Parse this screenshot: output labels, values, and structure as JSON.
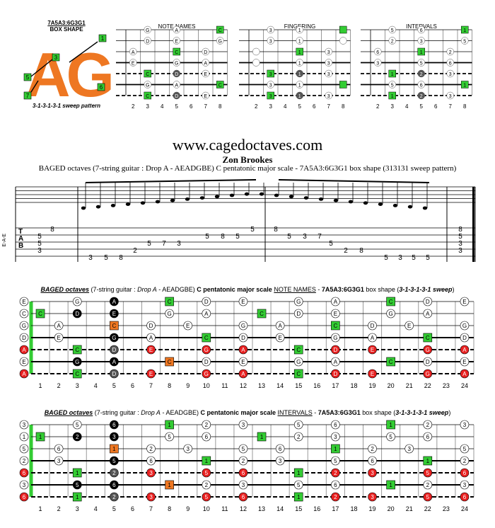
{
  "header": {
    "box_title": "7A5A3:6G3G1",
    "box_subtitle": "BOX SHAPE",
    "logo_letters": "AG",
    "logo_finger_numbers": [
      "1",
      "3",
      "5",
      "7",
      "6"
    ],
    "sweep_caption": "3-1-3-1-3-1 sweep pattern",
    "mini_titles": [
      "NOTE NAMES",
      "FINGERING",
      "INTERVALS"
    ],
    "mini_frets": [
      "2",
      "3",
      "4",
      "5",
      "6",
      "7",
      "8"
    ]
  },
  "site": "www.cagedoctaves.com",
  "author": "Zon Brookes",
  "subtitle": "BAGED octaves (7-string guitar : Drop A - AEADGBE) C pentatonic major scale - 7A5A3:6G3G1 box shape (313131 sweep pattern)",
  "staff": {
    "string_label": "E-A-E",
    "tab_letters": [
      "T",
      "A",
      "B"
    ],
    "tab_numbers": [
      "8",
      "5",
      "5",
      "3",
      "3",
      "5",
      "8",
      "2",
      "5",
      "7",
      "3",
      "5",
      "8",
      "5",
      "5",
      "8",
      "5",
      "3",
      "7",
      "5",
      "2",
      "8",
      "5",
      "3",
      "5",
      "5",
      "8",
      "5",
      "3",
      "3"
    ]
  },
  "section1": {
    "title_italic": "BAGED octaves",
    "title_rest1": " (7-string guitar : ",
    "title_drop": "Drop A",
    "title_rest2": " - AEADGBE) ",
    "title_scale": "C pentatonic major scale",
    "title_type": "NOTE NAMES",
    "title_dash": " - ",
    "title_box": "7A5A3:6G3G1",
    "title_box2": " box shape (",
    "title_pattern": "3-1-3-1-3-1 sweep",
    "title_end": ")"
  },
  "section2": {
    "title_italic": "BAGED octaves",
    "title_rest1": " (7-string guitar : ",
    "title_drop": "Drop A",
    "title_rest2": " - AEADGBE) ",
    "title_scale": "C pentatonic major scale",
    "title_type": "INTERVALS",
    "title_dash": " - ",
    "title_box": "7A5A3:6G3G1",
    "title_box2": " box shape (",
    "title_pattern": "3-1-3-1-3-1 sweep",
    "title_end": ")"
  },
  "fret_numbers": [
    "1",
    "2",
    "3",
    "4",
    "5",
    "6",
    "7",
    "8",
    "9",
    "10",
    "11",
    "12",
    "13",
    "14",
    "15",
    "16",
    "17",
    "18",
    "19",
    "20",
    "21",
    "22",
    "23",
    "24"
  ],
  "open_notes": [
    "E",
    "C",
    "G",
    "D",
    "A",
    "E",
    "A"
  ],
  "open_intervals": [
    "3",
    "1",
    "5",
    "2",
    "6",
    "3",
    "6"
  ],
  "colors": {
    "green": "#33cc33",
    "orange": "#ee7722",
    "red": "#e82020",
    "black": "#000000",
    "grey": "#555555"
  }
}
